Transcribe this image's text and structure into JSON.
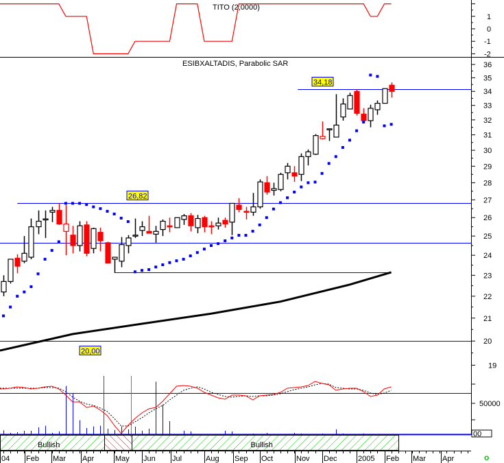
{
  "colors": {
    "up": "#000000",
    "down": "#ff0000",
    "sar": "#0000ff",
    "level": "#0000ff",
    "tito": "#ff0000",
    "ma": "#000000",
    "volume": "#0000ff",
    "bull_hatch": "#00cc00",
    "bear_hatch": "#ff0000"
  },
  "chart_data": [
    {
      "type": "line",
      "title": "TITO (2,0000)",
      "y_ticks": [
        "1",
        "0",
        "-1",
        "-2"
      ],
      "ylim": [
        -2,
        2
      ],
      "series": [
        {
          "name": "TITO",
          "values": [
            2,
            2,
            2,
            2,
            2,
            2,
            2,
            2,
            2,
            1,
            1,
            1,
            1,
            -2,
            -2,
            -2,
            -2,
            -2,
            -2,
            -1,
            -1,
            -1,
            -1,
            -1,
            -1,
            2,
            2,
            2,
            2,
            -1,
            -1,
            -1,
            -1,
            -1,
            2,
            2,
            2,
            2,
            2,
            2,
            2,
            2,
            2,
            2,
            2,
            2,
            2,
            2,
            2,
            2,
            2,
            2,
            2,
            1,
            1,
            2,
            2
          ]
        }
      ]
    },
    {
      "type": "candlestick",
      "title": "ESIBXALTADIS, Parabolic SAR",
      "scale": "log",
      "ylim": [
        19,
        36
      ],
      "y_ticks": [
        "36",
        "35",
        "34",
        "33",
        "32",
        "31",
        "30",
        "29",
        "28",
        "27",
        "26",
        "25",
        "24",
        "23",
        "22",
        "21",
        "20",
        "19"
      ],
      "candles": [
        [
          22.2,
          23.0,
          22.0,
          22.7,
          "up"
        ],
        [
          22.7,
          23.8,
          22.6,
          23.8,
          "up"
        ],
        [
          23.85,
          24.05,
          23.1,
          23.45,
          "down"
        ],
        [
          23.7,
          25.0,
          23.6,
          24.1,
          "up"
        ],
        [
          23.9,
          25.95,
          23.8,
          25.5,
          "up"
        ],
        [
          25.5,
          26.4,
          25.1,
          25.8,
          "up"
        ],
        [
          25.93,
          26.4,
          24.9,
          25.93,
          "up"
        ],
        [
          26.3,
          26.6,
          25.75,
          26.4,
          "up"
        ],
        [
          26.4,
          26.8,
          25.6,
          25.65,
          "down"
        ],
        [
          25.65,
          26.7,
          24.0,
          25.25,
          "down-hollow"
        ],
        [
          25.05,
          25.55,
          24.1,
          24.5,
          "down"
        ],
        [
          24.5,
          25.8,
          24.2,
          25.55,
          "up"
        ],
        [
          25.6,
          25.8,
          23.95,
          24.1,
          "down"
        ],
        [
          24.35,
          25.45,
          24.1,
          25.4,
          "up"
        ],
        [
          25.2,
          25.45,
          24.2,
          24.75,
          "down"
        ],
        [
          24.65,
          24.7,
          23.6,
          23.6,
          "down"
        ],
        [
          23.8,
          23.9,
          23.15,
          23.9,
          "up"
        ],
        [
          23.7,
          24.95,
          23.4,
          24.55,
          "up"
        ],
        [
          24.5,
          25.05,
          24.1,
          24.9,
          "up"
        ],
        [
          25.05,
          25.95,
          24.9,
          25.05,
          "up"
        ],
        [
          25.3,
          25.8,
          25.0,
          25.5,
          "up"
        ],
        [
          25.25,
          26.1,
          25.15,
          25.15,
          "down"
        ],
        [
          25.1,
          25.55,
          24.65,
          25.25,
          "up"
        ],
        [
          25.35,
          25.9,
          25.0,
          25.8,
          "up"
        ],
        [
          25.55,
          26.0,
          25.2,
          25.55,
          "down"
        ],
        [
          25.45,
          26.0,
          25.45,
          26.0,
          "up"
        ],
        [
          25.9,
          26.2,
          25.6,
          26.1,
          "up"
        ],
        [
          26.1,
          26.25,
          25.25,
          25.55,
          "down"
        ],
        [
          25.45,
          26.15,
          25.15,
          25.95,
          "up"
        ],
        [
          26.0,
          26.1,
          25.2,
          25.5,
          "down"
        ],
        [
          25.55,
          25.8,
          25.1,
          25.55,
          "down"
        ],
        [
          25.55,
          26.0,
          25.35,
          25.7,
          "up"
        ],
        [
          25.85,
          26.0,
          25.45,
          25.65,
          "down"
        ],
        [
          25.75,
          26.8,
          25.05,
          26.8,
          "up"
        ],
        [
          26.7,
          27.1,
          26.3,
          26.45,
          "down"
        ],
        [
          26.35,
          26.6,
          25.9,
          26.35,
          "down"
        ],
        [
          26.3,
          27.4,
          26.1,
          26.6,
          "up"
        ],
        [
          26.6,
          28.2,
          26.5,
          28.05,
          "up"
        ],
        [
          28.0,
          28.4,
          27.3,
          27.45,
          "down"
        ],
        [
          27.55,
          28.0,
          27.25,
          27.65,
          "up"
        ],
        [
          27.6,
          28.6,
          27.5,
          28.5,
          "up"
        ],
        [
          28.6,
          29.2,
          28.2,
          29.0,
          "up"
        ],
        [
          28.6,
          29.0,
          28.05,
          28.4,
          "down"
        ],
        [
          28.5,
          29.8,
          28.1,
          29.6,
          "up"
        ],
        [
          29.6,
          30.05,
          29.05,
          29.9,
          "up"
        ],
        [
          29.75,
          31.05,
          29.7,
          30.95,
          "up"
        ],
        [
          30.9,
          31.9,
          30.7,
          30.75,
          "down-hollow"
        ],
        [
          31.4,
          31.4,
          30.6,
          31.4,
          "up"
        ],
        [
          30.85,
          33.8,
          30.85,
          31.65,
          "up"
        ],
        [
          32.2,
          33.5,
          31.95,
          33.1,
          "up"
        ],
        [
          32.75,
          33.9,
          32.75,
          33.7,
          "up"
        ],
        [
          34.0,
          34.15,
          32.3,
          32.45,
          "down"
        ],
        [
          32.4,
          32.8,
          31.95,
          31.95,
          "down"
        ],
        [
          31.95,
          33.05,
          31.5,
          32.8,
          "up"
        ],
        [
          32.7,
          33.35,
          32.35,
          33.15,
          "up"
        ],
        [
          33.15,
          34.2,
          33.15,
          34.2,
          "up"
        ],
        [
          34.45,
          34.65,
          33.55,
          34.0,
          "down"
        ]
      ],
      "sar": [
        21.1,
        21.5,
        22.0,
        22.2,
        22.45,
        23.07,
        23.8,
        24.25,
        24.7,
        26.8,
        26.8,
        26.8,
        26.73,
        26.6,
        26.5,
        26.35,
        26.2,
        25.97,
        25.78,
        23.17,
        23.24,
        23.28,
        23.41,
        23.52,
        23.63,
        23.72,
        23.8,
        23.97,
        24.14,
        24.32,
        24.5,
        24.6,
        24.75,
        24.9,
        25.04,
        25.04,
        25.26,
        25.6,
        26.0,
        26.48,
        26.84,
        27.12,
        27.45,
        27.75,
        28.0,
        28.04,
        28.56,
        29.17,
        29.6,
        30.18,
        30.65,
        31.27,
        31.85,
        35.2,
        35.1,
        31.6,
        31.7
      ],
      "moving_average": [
        [
          -0.5,
          19.6
        ],
        [
          10,
          20.3
        ],
        [
          20,
          20.75
        ],
        [
          30,
          21.2
        ],
        [
          40,
          21.75
        ],
        [
          50,
          22.55
        ],
        [
          56,
          23.15
        ]
      ],
      "levels": [
        {
          "value": 34.18,
          "label": "34,18",
          "from": 42.5,
          "to": "end"
        },
        {
          "value": 26.82,
          "label": "26,82",
          "from": 2,
          "to": "end"
        },
        {
          "value": 24.65,
          "label": "",
          "from": "start",
          "to": "end"
        },
        {
          "value": 23.15,
          "label": "",
          "from": 16,
          "to": 56
        },
        {
          "value": 20.0,
          "label": "20,00",
          "from": "start",
          "to": "end"
        }
      ]
    },
    {
      "type": "bar",
      "title": "Volume / oscillator",
      "y_ticks": [
        "50000"
      ],
      "volume": [
        11400,
        7800,
        8800,
        10800,
        10800,
        15700,
        18000,
        7800,
        9800,
        74900,
        64400,
        25800,
        14700,
        17000,
        18000,
        13700,
        11800,
        17000,
        12800,
        16700,
        10800,
        13700,
        80800,
        48100,
        24500,
        5900,
        10800,
        9800,
        5900,
        5900,
        2900,
        2000,
        10800,
        9800,
        4600,
        4600,
        6900,
        5900,
        7800,
        4600,
        2000,
        4600,
        7800,
        6900,
        2900,
        2000,
        6900,
        2900,
        12800,
        6900,
        4600,
        5900,
        6900,
        4600,
        5900,
        5900,
        4600
      ],
      "oscillator_fast": [
        66,
        67,
        69,
        68,
        66,
        67,
        69,
        70,
        66,
        57,
        47,
        47,
        39,
        41,
        35,
        27,
        13,
        1,
        13,
        23,
        31,
        37,
        39,
        48,
        59,
        70,
        71,
        70,
        67,
        61,
        57,
        53,
        51,
        57,
        57,
        56,
        50,
        56,
        57,
        58,
        61,
        67,
        68,
        69,
        71,
        77,
        74,
        72,
        64,
        66,
        67,
        67,
        62,
        55,
        57,
        66,
        69
      ],
      "oscillator_slow": [
        67,
        67,
        67,
        67,
        67,
        67,
        68,
        68,
        67,
        62,
        54,
        48,
        44,
        42,
        38,
        33,
        23,
        12,
        12,
        18,
        24,
        31,
        37,
        42,
        50,
        57,
        64,
        67,
        69,
        66,
        61,
        58,
        55,
        54,
        55,
        56,
        55,
        56,
        56,
        57,
        59,
        62,
        65,
        67,
        69,
        72,
        74,
        73,
        68,
        67,
        66,
        66,
        64,
        60,
        58,
        60,
        64
      ],
      "oscillator_reference": 60,
      "box_label": "00"
    }
  ],
  "trend_bands": [
    {
      "label": "Bullish",
      "state": "bull",
      "from": -0.5,
      "to": 14.6
    },
    {
      "label": "",
      "state": "bear",
      "from": 14.6,
      "to": 18.5
    },
    {
      "label": "Bullish",
      "state": "bull",
      "from": 18.5,
      "to": 57
    }
  ],
  "months": [
    "04",
    "Feb",
    "Mar",
    "Apr",
    "May",
    "Jun",
    "Jul",
    "Aug",
    "Sep",
    "Oct",
    "Nov",
    "Dec",
    "2005",
    "Feb",
    "Mar",
    "Apr"
  ],
  "status_icon": "o"
}
